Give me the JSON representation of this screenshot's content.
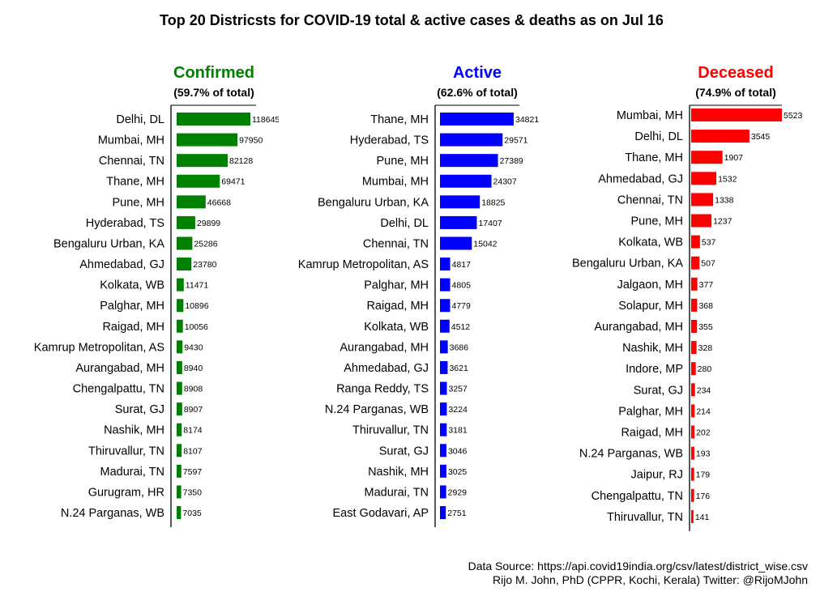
{
  "title": "Top 20 Districsts for COVID-19 total & active cases & deaths as on Jul 16",
  "footer": {
    "source": "Data Source: https://api.covid19india.org/csv/latest/district_wise.csv",
    "credit": "Rijo M. John, PhD (CPPR, Kochi, Kerala) Twitter: @RijoMJohn"
  },
  "chart_data": [
    {
      "type": "bar",
      "orientation": "horizontal",
      "title": "Confirmed",
      "subtitle": "(59.7% of total)",
      "color": "#008000",
      "categories": [
        "Delhi, DL",
        "Mumbai, MH",
        "Chennai, TN",
        "Thane, MH",
        "Pune, MH",
        "Hyderabad, TS",
        "Bengaluru Urban, KA",
        "Ahmedabad, GJ",
        "Kolkata, WB",
        "Palghar, MH",
        "Raigad, MH",
        "Kamrup Metropolitan, AS",
        "Aurangabad, MH",
        "Chengalpattu, TN",
        "Surat, GJ",
        "Nashik, MH",
        "Thiruvallur, TN",
        "Madurai, TN",
        "Gurugram, HR",
        "N.24 Parganas, WB"
      ],
      "values": [
        118645,
        97950,
        82128,
        69471,
        46668,
        29899,
        25286,
        23780,
        11471,
        10896,
        10056,
        9430,
        8940,
        8908,
        8907,
        8174,
        8107,
        7597,
        7350,
        7035
      ]
    },
    {
      "type": "bar",
      "orientation": "horizontal",
      "title": "Active",
      "subtitle": "(62.6% of total)",
      "color": "#0000FF",
      "categories": [
        "Thane, MH",
        "Hyderabad, TS",
        "Pune, MH",
        "Mumbai, MH",
        "Bengaluru Urban, KA",
        "Delhi, DL",
        "Chennai, TN",
        "Kamrup Metropolitan, AS",
        "Palghar, MH",
        "Raigad, MH",
        "Kolkata, WB",
        "Aurangabad, MH",
        "Ahmedabad, GJ",
        "Ranga Reddy, TS",
        "N.24 Parganas, WB",
        "Thiruvallur, TN",
        "Surat, GJ",
        "Nashik, MH",
        "Madurai, TN",
        "East Godavari, AP"
      ],
      "values": [
        34821,
        29571,
        27389,
        24307,
        18825,
        17407,
        15042,
        4817,
        4805,
        4779,
        4512,
        3686,
        3621,
        3257,
        3224,
        3181,
        3046,
        3025,
        2929,
        2751
      ]
    },
    {
      "type": "bar",
      "orientation": "horizontal",
      "title": "Deceased",
      "subtitle": "(74.9% of total)",
      "color": "#FF0000",
      "categories": [
        "Mumbai, MH",
        "Delhi, DL",
        "Thane, MH",
        "Ahmedabad, GJ",
        "Chennai, TN",
        "Pune, MH",
        "Kolkata, WB",
        "Bengaluru Urban, KA",
        "Jalgaon, MH",
        "Solapur, MH",
        "Aurangabad, MH",
        "Nashik, MH",
        "Indore, MP",
        "Surat, GJ",
        "Palghar, MH",
        "Raigad, MH",
        "N.24 Parganas, WB",
        "Jaipur, RJ",
        "Chengalpattu, TN",
        "Thiruvallur, TN"
      ],
      "values": [
        5523,
        3545,
        1907,
        1532,
        1338,
        1237,
        537,
        507,
        377,
        368,
        355,
        328,
        280,
        234,
        214,
        202,
        193,
        179,
        176,
        141
      ]
    }
  ]
}
